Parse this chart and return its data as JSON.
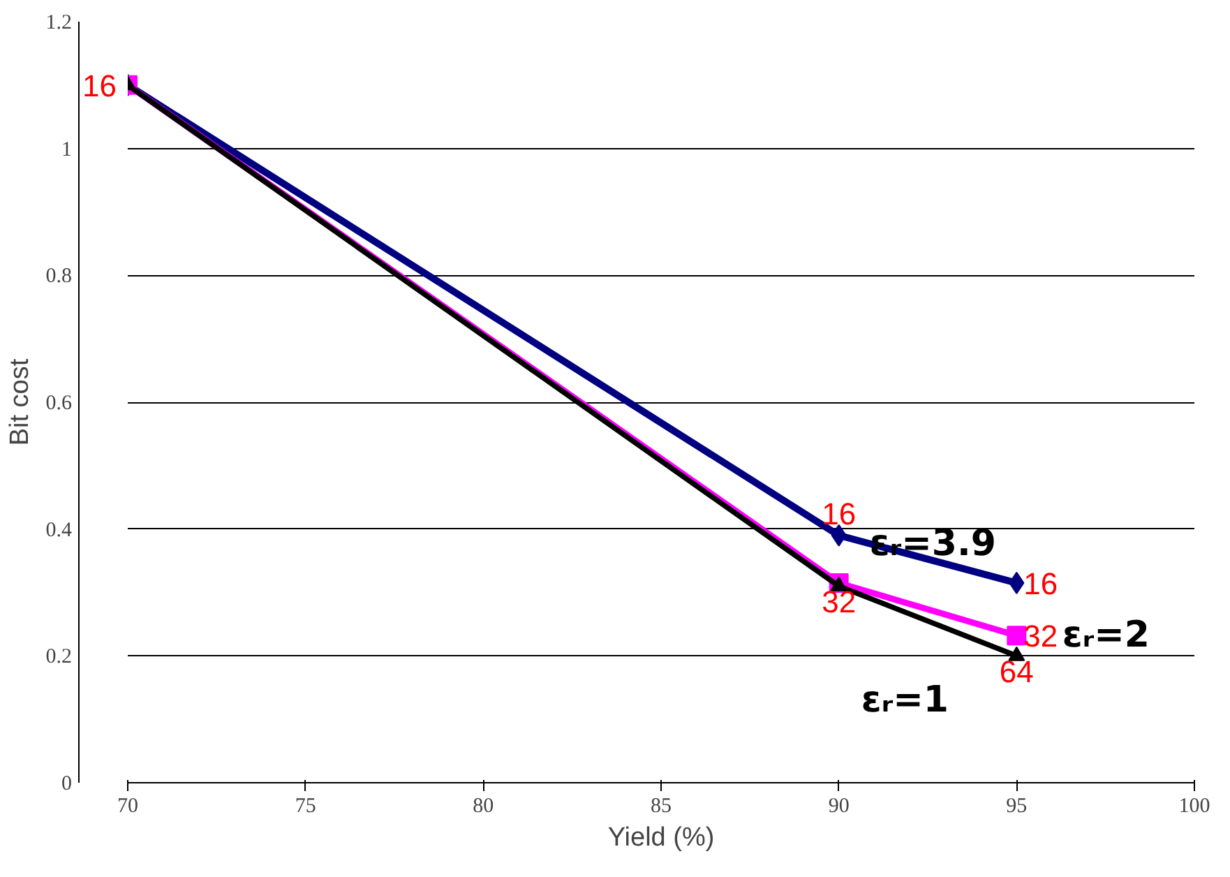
{
  "chart_data": {
    "type": "line",
    "xlabel": "Yield (%)",
    "ylabel": "Bit cost",
    "x": [
      70,
      90,
      95
    ],
    "series": [
      {
        "name": "εᵣ=3.9",
        "color": "#000080",
        "values": [
          1.1,
          0.39,
          0.315
        ],
        "marker": "diamond"
      },
      {
        "name": "εᵣ=2",
        "color": "#ff00ff",
        "values": [
          1.1,
          0.315,
          0.232
        ],
        "marker": "square"
      },
      {
        "name": "εᵣ=1",
        "color": "#000000",
        "values": [
          1.1,
          0.31,
          0.2
        ],
        "marker": "triangle"
      }
    ],
    "xlim": [
      70,
      100
    ],
    "xticks": [
      70,
      75,
      80,
      85,
      90,
      95,
      100
    ],
    "ylim": [
      0,
      1.2
    ],
    "yticks": [
      0,
      0.2,
      0.4,
      0.6,
      0.8,
      1,
      1.2
    ],
    "grid": "y",
    "legend": false,
    "annotations": [
      {
        "text": "16",
        "x": 70,
        "y": 1.1
      },
      {
        "text": "16",
        "x": 90,
        "y": 0.39
      },
      {
        "text": "16",
        "x": 95,
        "y": 0.315
      },
      {
        "text": "32",
        "x": 90,
        "y": 0.31
      },
      {
        "text": "32",
        "x": 95,
        "y": 0.232
      },
      {
        "text": "64",
        "x": 95,
        "y": 0.2
      }
    ]
  }
}
